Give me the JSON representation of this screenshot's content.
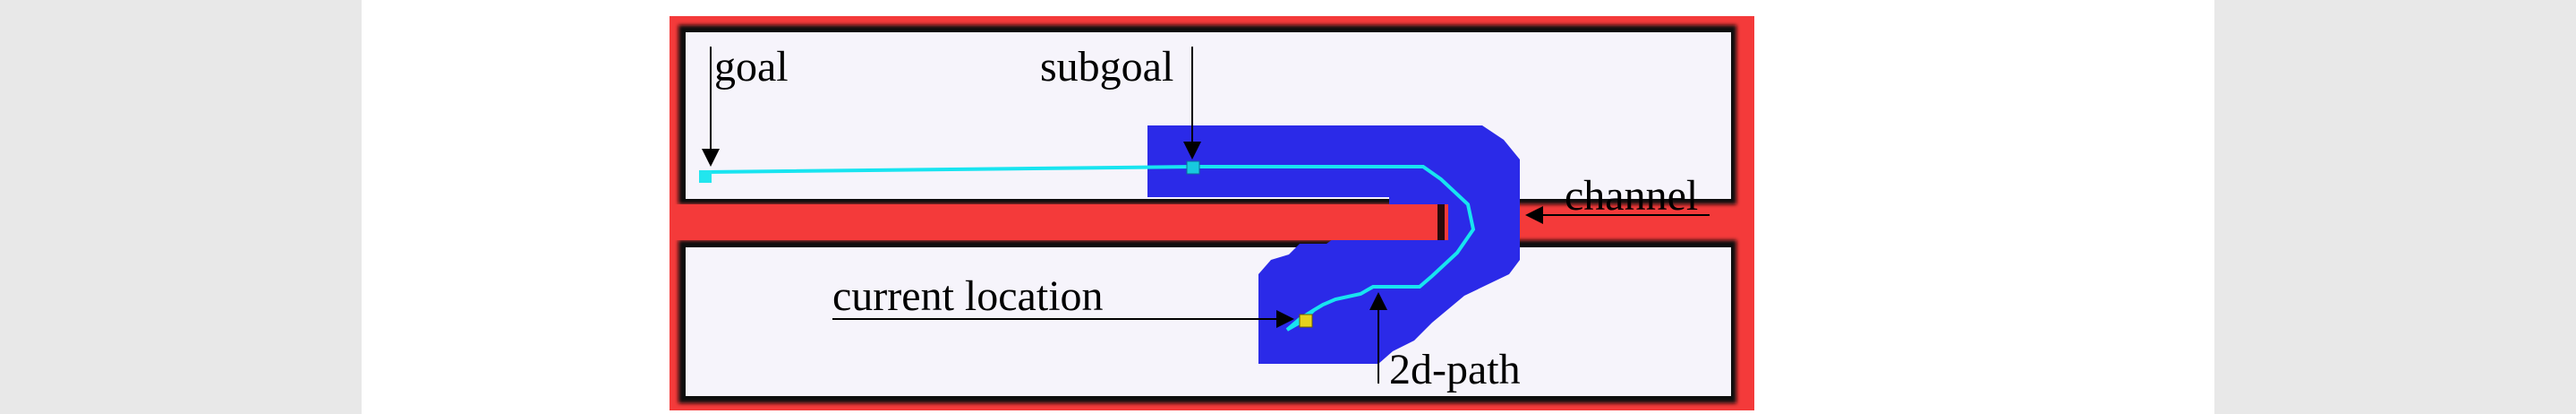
{
  "labels": {
    "goal": "goal",
    "subgoal": "subgoal",
    "channel": "channel",
    "current_location": "current location",
    "path_2d": "2d-path"
  },
  "colors": {
    "page_background": "#e8e8e8",
    "sheet": "#ffffff",
    "wall": "#f43a3a",
    "obstacle_edge": "#101010",
    "free_space": "#f6f4fb",
    "channel": "#2b2ae8",
    "path": "#18e4f0",
    "goal_marker": "#22e6ee",
    "subgoal_marker": "#17c9df",
    "current_location_marker": "#e6d21d",
    "annotation": "#000000"
  }
}
